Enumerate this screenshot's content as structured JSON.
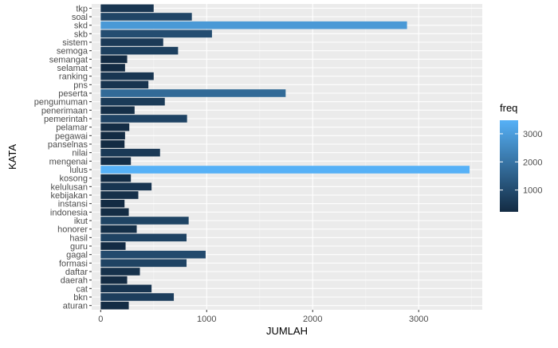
{
  "chart_data": {
    "type": "bar",
    "orientation": "horizontal",
    "xlabel": "JUMLAH",
    "ylabel": "KATA",
    "xlim": [
      -85,
      3600
    ],
    "x_ticks": [
      0,
      1000,
      2000,
      3000
    ],
    "x_tick_labels": [
      "0",
      "1000",
      "2000",
      "3000"
    ],
    "grid": true,
    "categories": [
      "aturan",
      "bkn",
      "cat",
      "daerah",
      "daftar",
      "formasi",
      "gagal",
      "guru",
      "hasil",
      "honorer",
      "ikut",
      "indonesia",
      "instansi",
      "kebijakan",
      "kelulusan",
      "kosong",
      "lulus",
      "mengenai",
      "nilai",
      "panselnas",
      "pegawai",
      "pelamar",
      "pemerintah",
      "penerimaan",
      "pengumuman",
      "peserta",
      "pns",
      "ranking",
      "selamat",
      "semangat",
      "semoga",
      "sistem",
      "skb",
      "skd",
      "soal",
      "tkp"
    ],
    "values": [
      265,
      690,
      480,
      250,
      370,
      810,
      990,
      235,
      810,
      340,
      830,
      265,
      225,
      355,
      480,
      285,
      3480,
      285,
      560,
      225,
      230,
      270,
      815,
      320,
      605,
      1745,
      450,
      500,
      230,
      250,
      730,
      590,
      1050,
      2890,
      860,
      500
    ],
    "legend": {
      "title": "freq",
      "position": "right",
      "ticks": [
        1000,
        2000,
        3000
      ],
      "tick_labels": [
        "1000",
        "2000",
        "3000"
      ],
      "range": [
        225,
        3480
      ],
      "color_low": "#132B43",
      "color_high": "#56B1F7"
    },
    "colors": {
      "panel_background": "#EBEBEB",
      "grid_major": "#FFFFFF",
      "grid_minor": "#F5F5F5"
    }
  }
}
